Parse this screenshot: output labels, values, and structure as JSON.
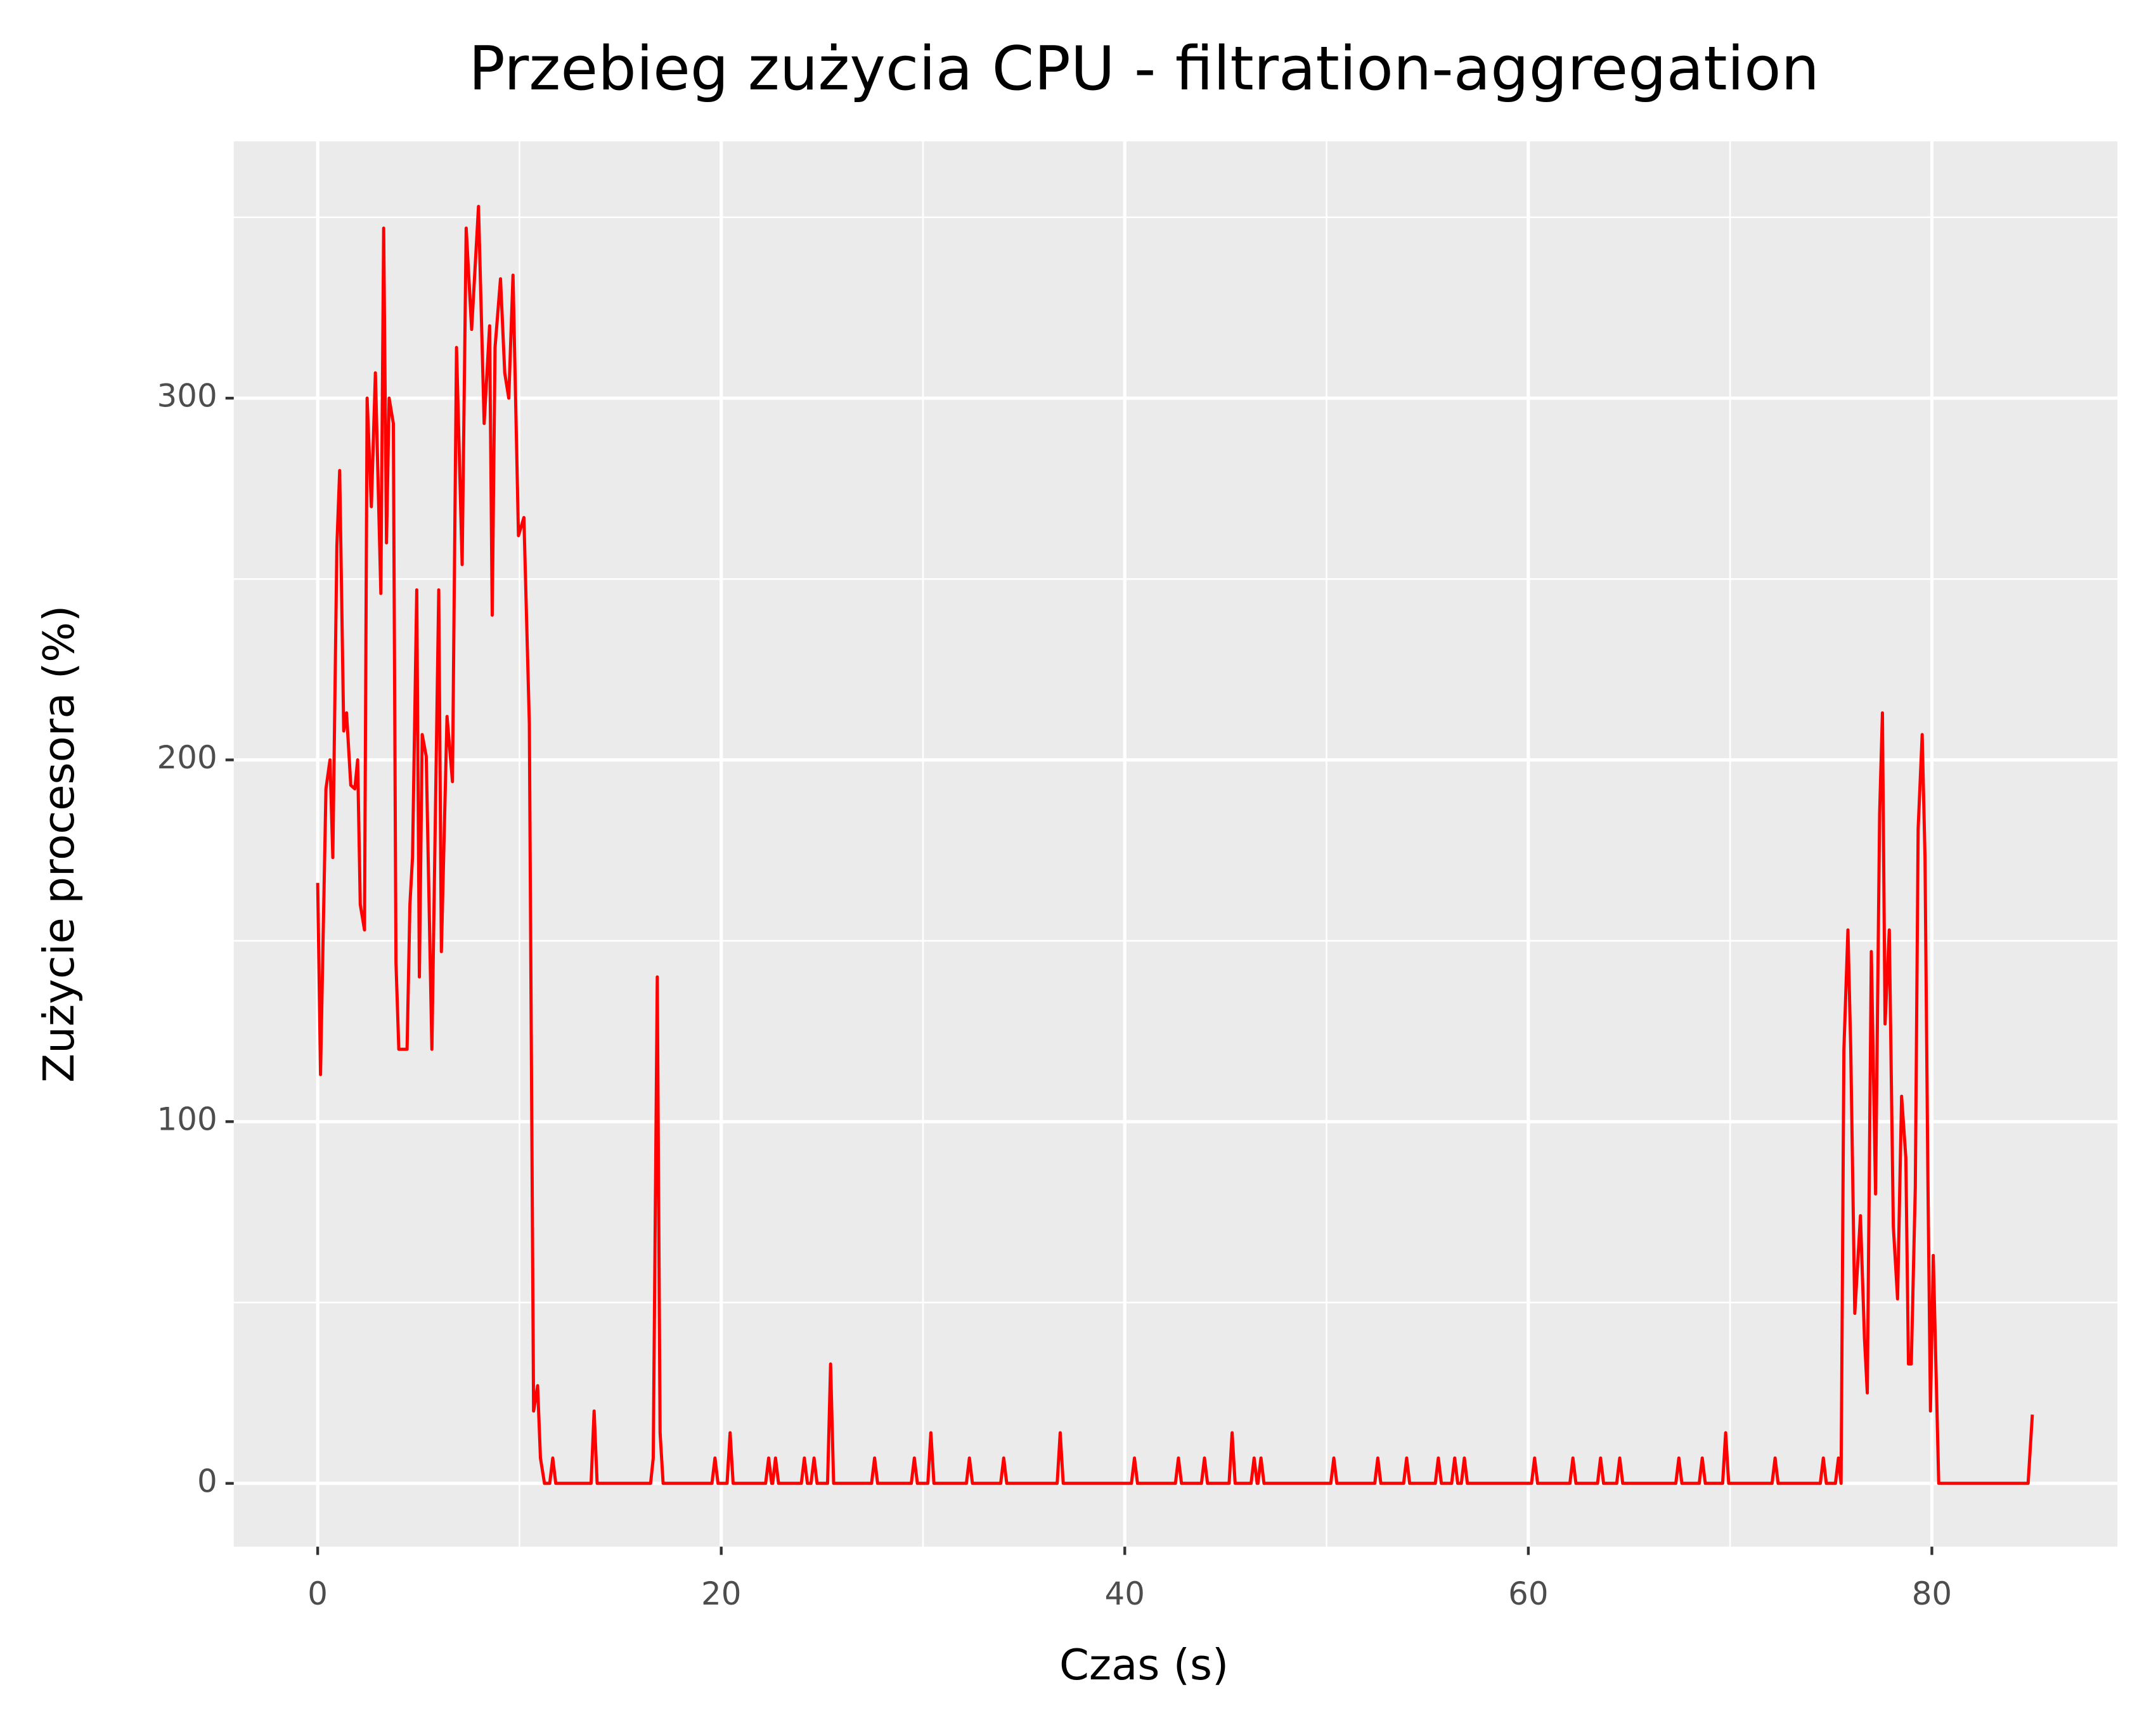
{
  "chart_data": {
    "type": "line",
    "title": "Przebieg zużycia CPU - filtration-aggregation",
    "x_label": "Czas (s)",
    "y_label": "Zużycie procesora (%)",
    "xlim": [
      -4.16,
      89.2
    ],
    "ylim": [
      -17.5,
      371
    ],
    "xticks": [
      0,
      20,
      40,
      60,
      80
    ],
    "yticks": [
      0,
      100,
      200,
      300
    ],
    "grid": true,
    "x": [
      0,
      0.14,
      0.41,
      0.61,
      0.75,
      0.95,
      1.09,
      1.29,
      1.43,
      1.64,
      1.84,
      1.98,
      2.11,
      2.32,
      2.45,
      2.66,
      2.86,
      3.13,
      3.27,
      3.41,
      3.54,
      3.75,
      3.88,
      4.02,
      4.43,
      4.57,
      4.7,
      4.91,
      5.04,
      5.18,
      5.38,
      5.66,
      6.0,
      6.13,
      6.41,
      6.68,
      6.88,
      7.16,
      7.36,
      7.63,
      7.97,
      8.25,
      8.52,
      8.65,
      8.79,
      9.06,
      9.27,
      9.47,
      9.68,
      9.95,
      10.22,
      10.49,
      10.7,
      10.9,
      11.04,
      11.24,
      11.5,
      11.65,
      11.8,
      13.55,
      13.7,
      13.85,
      16.5,
      16.63,
      16.83,
      16.97,
      17.12,
      19.54,
      19.69,
      19.84,
      20.29,
      20.44,
      20.59,
      22.2,
      22.35,
      22.5,
      22.55,
      22.69,
      22.84,
      23.97,
      24.12,
      24.27,
      24.45,
      24.6,
      24.75,
      25.27,
      25.42,
      25.57,
      27.45,
      27.6,
      27.75,
      29.42,
      29.57,
      29.72,
      30.24,
      30.39,
      30.54,
      32.15,
      32.3,
      32.45,
      33.85,
      34.0,
      34.15,
      36.65,
      36.8,
      36.95,
      40.33,
      40.48,
      40.63,
      42.51,
      42.66,
      42.81,
      43.8,
      43.95,
      44.1,
      45.17,
      45.32,
      45.47,
      46.26,
      46.41,
      46.56,
      46.6,
      46.75,
      46.9,
      50.21,
      50.36,
      50.51,
      52.39,
      52.54,
      52.69,
      53.82,
      53.97,
      54.12,
      55.39,
      55.54,
      55.69,
      56.2,
      56.35,
      56.5,
      56.68,
      56.83,
      56.98,
      60.16,
      60.31,
      60.46,
      62.06,
      62.21,
      62.36,
      63.43,
      63.58,
      63.73,
      64.38,
      64.53,
      64.68,
      67.31,
      67.46,
      67.61,
      68.47,
      68.62,
      68.77,
      69.63,
      69.78,
      69.93,
      72.08,
      72.23,
      72.38,
      74.47,
      74.62,
      74.77,
      75.22,
      75.37,
      75.5,
      75.64,
      75.84,
      75.98,
      76.18,
      76.46,
      76.66,
      76.8,
      77.0,
      77.21,
      77.41,
      77.55,
      77.68,
      77.89,
      78.09,
      78.3,
      78.5,
      78.71,
      78.84,
      78.98,
      79.18,
      79.32,
      79.52,
      79.66,
      79.8,
      79.93,
      80.07,
      80.34,
      84.77,
      84.98
    ],
    "series": [
      {
        "color": "#ff0000",
        "values": [
          166,
          113,
          192,
          200,
          173,
          259,
          280,
          208,
          213,
          193,
          192,
          200,
          160,
          153,
          300,
          270,
          307,
          246,
          347,
          260,
          300,
          293,
          144,
          120,
          120,
          160,
          173,
          247,
          140,
          207,
          201,
          120,
          247,
          147,
          212,
          194,
          314,
          254,
          347,
          319,
          353,
          293,
          320,
          240,
          314,
          333,
          307,
          300,
          334,
          262,
          267,
          210,
          20,
          27,
          7,
          0,
          0,
          7,
          0,
          0,
          20,
          0,
          0,
          7,
          140,
          14,
          0,
          0,
          7,
          0,
          0,
          14,
          0,
          0,
          7,
          0,
          0,
          7,
          0,
          0,
          7,
          0,
          0,
          7,
          0,
          0,
          33,
          0,
          0,
          7,
          0,
          0,
          7,
          0,
          0,
          14,
          0,
          0,
          7,
          0,
          0,
          7,
          0,
          0,
          14,
          0,
          0,
          7,
          0,
          0,
          7,
          0,
          0,
          7,
          0,
          0,
          14,
          0,
          0,
          7,
          0,
          0,
          7,
          0,
          0,
          7,
          0,
          0,
          7,
          0,
          0,
          7,
          0,
          0,
          7,
          0,
          0,
          7,
          0,
          0,
          7,
          0,
          0,
          7,
          0,
          0,
          7,
          0,
          0,
          7,
          0,
          0,
          7,
          0,
          0,
          7,
          0,
          0,
          7,
          0,
          0,
          14,
          0,
          0,
          7,
          0,
          0,
          7,
          0,
          0,
          7,
          0,
          120,
          153,
          120,
          47,
          74,
          40,
          25,
          147,
          80,
          185,
          213,
          127,
          153,
          71,
          51,
          107,
          90,
          33,
          33,
          82,
          181,
          207,
          173,
          86,
          20,
          63,
          0,
          0,
          19
        ]
      }
    ]
  }
}
